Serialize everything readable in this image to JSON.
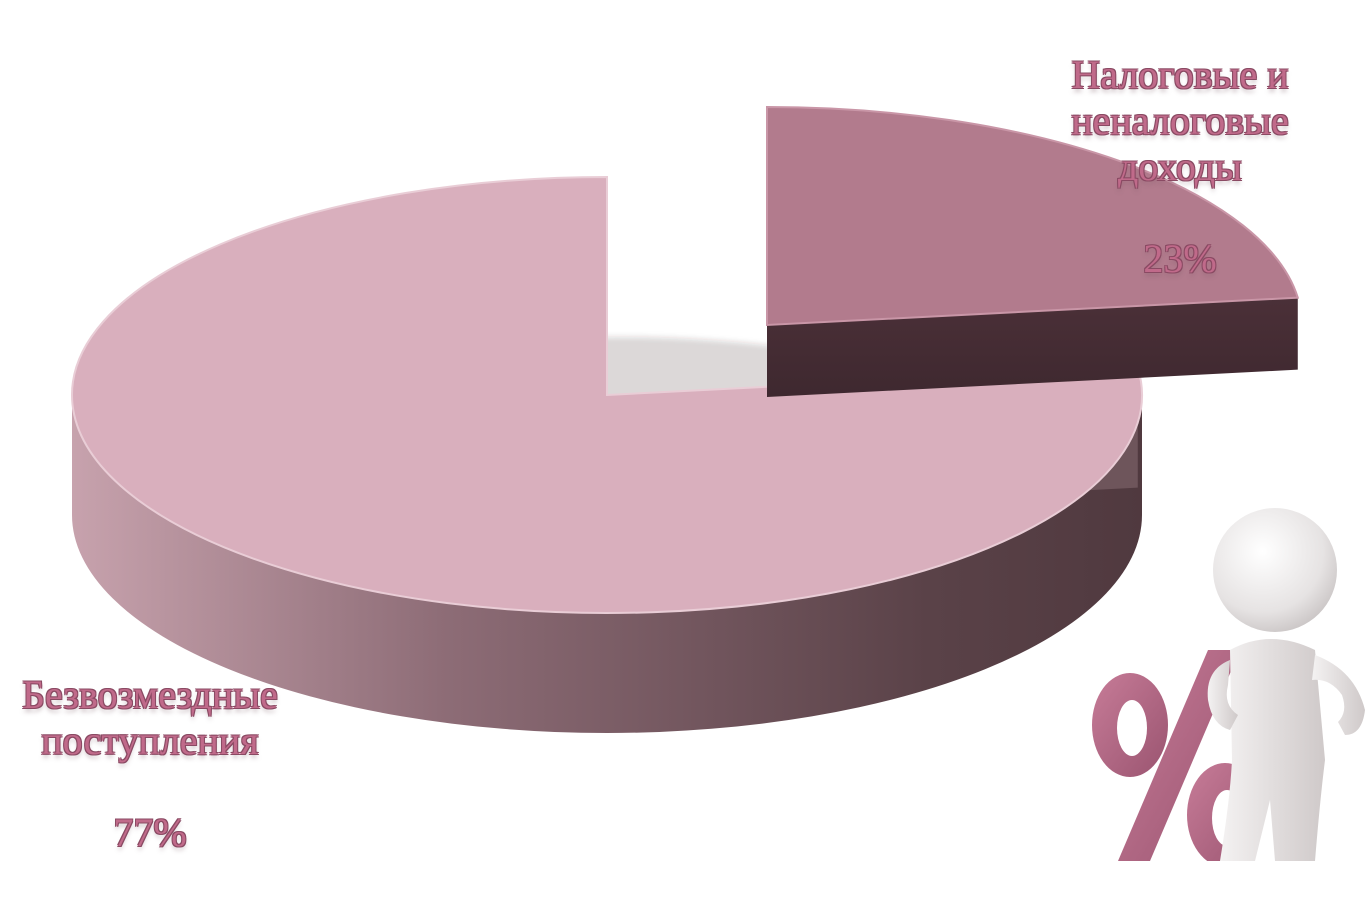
{
  "chart_data": {
    "type": "pie",
    "style": "3d-exploded",
    "slices": [
      {
        "label": "Налоговые и неналоговые доходы",
        "percent_label": "23%",
        "value": 23,
        "color": "#b27b8d",
        "side_color": "#4a3039"
      },
      {
        "label": "Безвозмездные поступления",
        "percent_label": "77%",
        "value": 77,
        "color": "#d9afbd",
        "side_color": "#5a4248"
      }
    ],
    "labels": {
      "tax_name": "Налоговые и\nненалоговые\nдоходы",
      "tax_pct": "23%",
      "free_name": "Безвозмездные\nпоступления",
      "free_pct": "77%"
    }
  },
  "decoration": {
    "figure_icon": "leaning-person-with-percent-sign",
    "percent_glyph": "%",
    "percent_color": "#b46a86",
    "figure_color": "#ececec"
  }
}
